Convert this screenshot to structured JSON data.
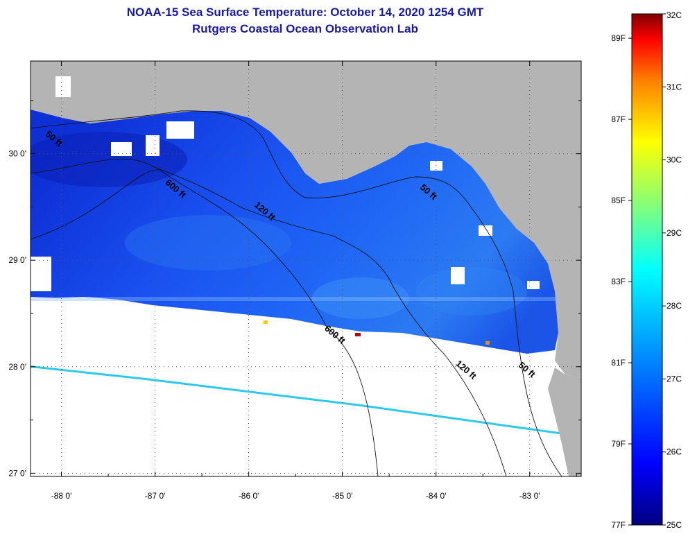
{
  "header": {
    "title": "NOAA-15 Sea Surface Temperature:  October 14, 2020 1254 GMT",
    "subtitle": "Rutgers Coastal Ocean Observation Lab"
  },
  "map": {
    "lon_range": [
      -88.33,
      -82.45
    ],
    "lat_range": [
      26.97,
      30.87
    ],
    "lat_ticks": [
      {
        "value": 27,
        "label": "27 0'"
      },
      {
        "value": 28,
        "label": "28 0'"
      },
      {
        "value": 29,
        "label": "29 0'"
      },
      {
        "value": 30,
        "label": "30 0'"
      }
    ],
    "lon_ticks": [
      {
        "value": -88,
        "label": "-88 0'"
      },
      {
        "value": -87,
        "label": "-87 0'"
      },
      {
        "value": -86,
        "label": "-86 0'"
      },
      {
        "value": -85,
        "label": "-85 0'"
      },
      {
        "value": -84,
        "label": "-84 0'"
      },
      {
        "value": -83,
        "label": "-83 0'"
      }
    ],
    "land_color": "#b4b4b4",
    "nodata_color": "#ffffff",
    "isobath_labels": [
      {
        "text": "50 ft",
        "lon": -88.1,
        "lat": 30.12
      },
      {
        "text": "600 ft",
        "lon": -86.8,
        "lat": 29.65
      },
      {
        "text": "120 ft",
        "lon": -85.85,
        "lat": 29.44
      },
      {
        "text": "50 ft",
        "lon": -84.1,
        "lat": 29.62
      },
      {
        "text": "600 ft",
        "lon": -85.1,
        "lat": 28.28
      },
      {
        "text": "120 ft",
        "lon": -83.7,
        "lat": 27.95
      },
      {
        "text": "50 ft",
        "lon": -83.05,
        "lat": 27.95
      }
    ]
  },
  "colorbar": {
    "celsius_labels": [
      "32C",
      "31C",
      "30C",
      "29C",
      "28C",
      "27C",
      "26C",
      "25C"
    ],
    "fahrenheit_labels": [
      "89F",
      "87F",
      "85F",
      "83F",
      "81F",
      "79F",
      "77F"
    ],
    "min_c": 25,
    "max_c": 32,
    "colors": [
      "#00007f",
      "#0000ff",
      "#007fff",
      "#00ffff",
      "#7fff7f",
      "#ffff00",
      "#ff7f00",
      "#ff0000",
      "#7f0000"
    ]
  }
}
